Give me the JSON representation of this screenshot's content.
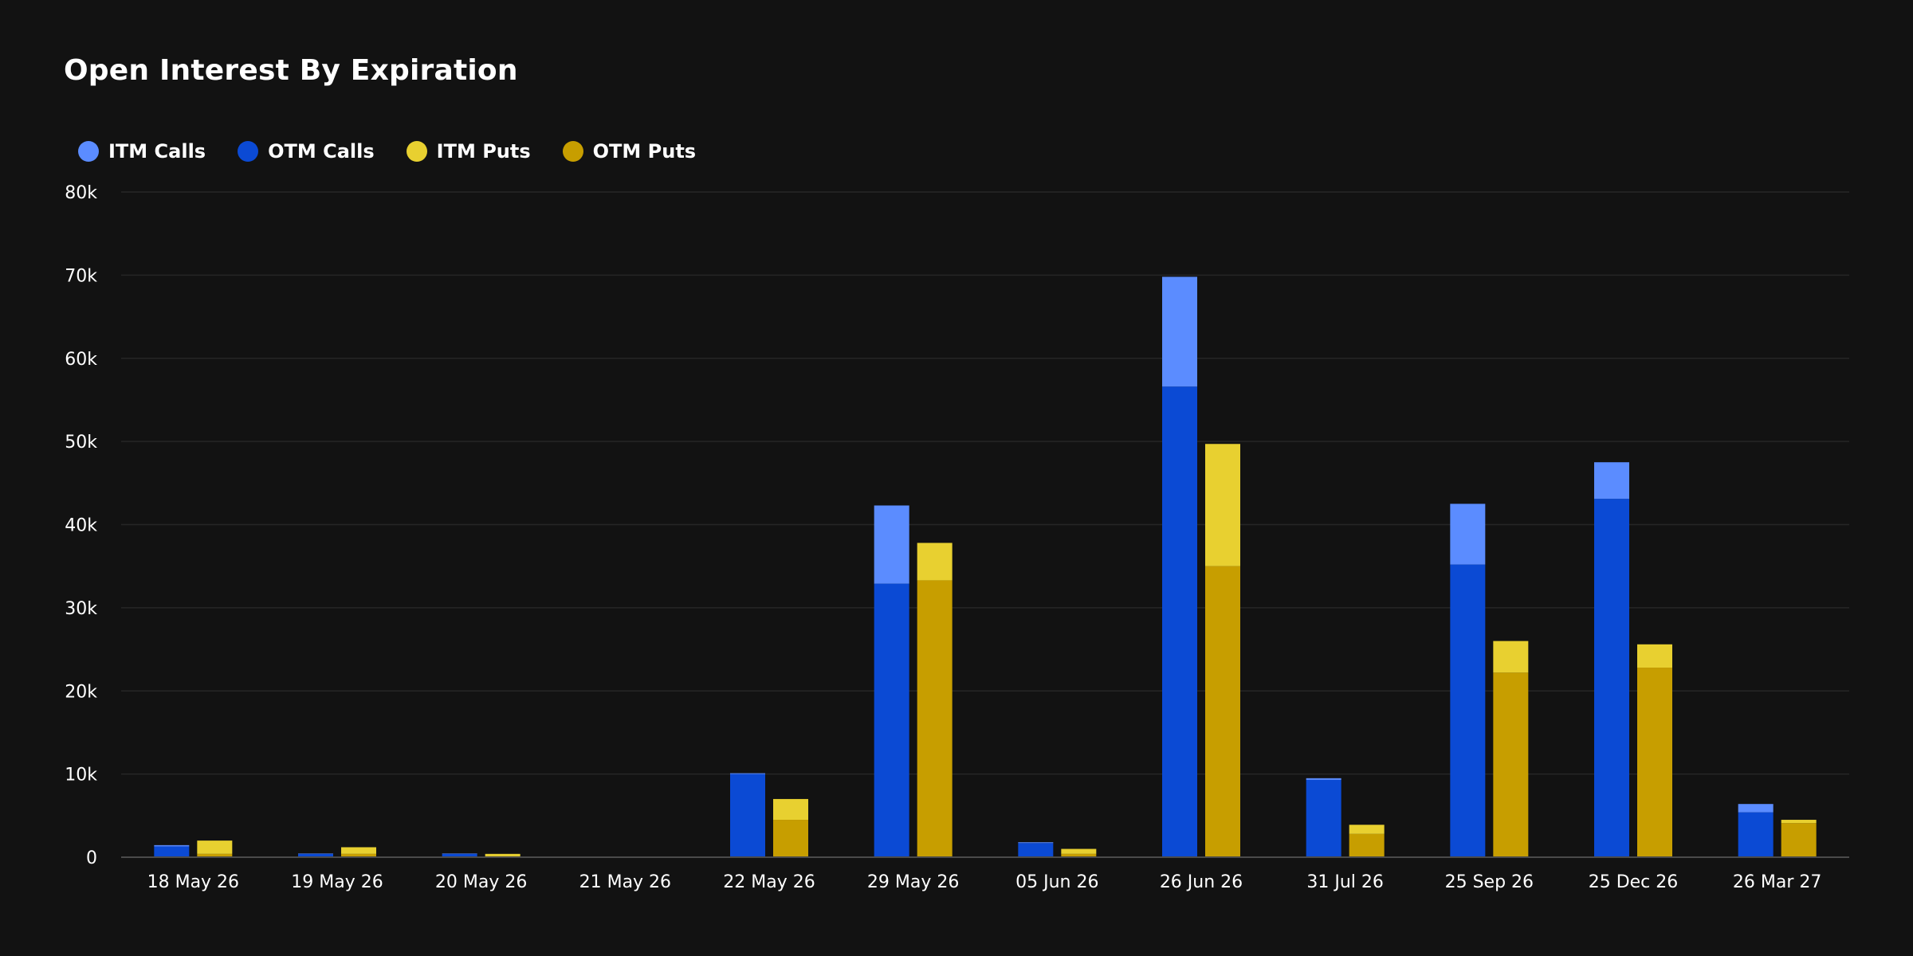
{
  "chart_data": {
    "type": "bar",
    "title": "Open Interest By Expiration",
    "xlabel": "",
    "ylabel": "",
    "categories": [
      "18 May 26",
      "19 May 26",
      "20 May 26",
      "21 May 26",
      "22 May 26",
      "29 May 26",
      "05 Jun 26",
      "26 Jun 26",
      "31 Jul 26",
      "25 Sep 26",
      "25 Dec 26",
      "26 Mar 27"
    ],
    "ylim": [
      0,
      80000
    ],
    "yticks": [
      0,
      10000,
      20000,
      30000,
      40000,
      50000,
      60000,
      70000,
      80000
    ],
    "ytick_labels": [
      "0",
      "10k",
      "20k",
      "30k",
      "40k",
      "50k",
      "60k",
      "70k",
      "80k"
    ],
    "grid": true,
    "legend_position": "top-left",
    "stacks": [
      {
        "stack": "calls",
        "series": [
          "OTM Calls",
          "ITM Calls"
        ]
      },
      {
        "stack": "puts",
        "series": [
          "OTM Puts",
          "ITM Puts"
        ]
      }
    ],
    "series": [
      {
        "name": "ITM Calls",
        "color": "#5b8cff",
        "stack": "calls",
        "values": [
          150,
          50,
          50,
          0,
          100,
          9400,
          100,
          13200,
          200,
          7300,
          4400,
          1000
        ]
      },
      {
        "name": "OTM Calls",
        "color": "#0b4ad4",
        "stack": "calls",
        "values": [
          1300,
          400,
          400,
          0,
          10000,
          32900,
          1700,
          56600,
          9300,
          35200,
          43100,
          5400
        ]
      },
      {
        "name": "ITM Puts",
        "color": "#e8d030",
        "stack": "puts",
        "values": [
          1600,
          800,
          300,
          0,
          2500,
          4500,
          600,
          14700,
          1100,
          3800,
          2800,
          400
        ]
      },
      {
        "name": "OTM Puts",
        "color": "#c79e00",
        "stack": "puts",
        "values": [
          400,
          400,
          100,
          0,
          4500,
          33300,
          400,
          35000,
          2800,
          22200,
          22800,
          4100
        ]
      }
    ]
  }
}
